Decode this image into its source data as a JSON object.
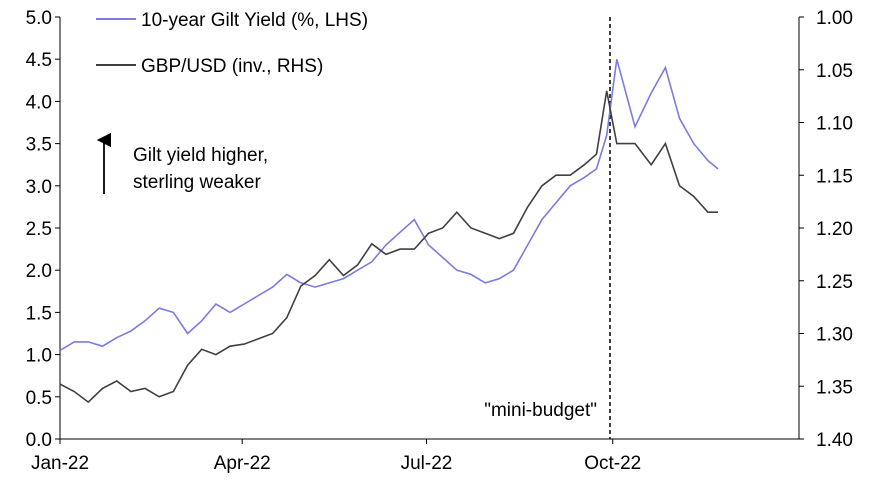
{
  "chart_data": {
    "type": "line",
    "title": "",
    "xlabel": "",
    "ylabel_left": "",
    "ylabel_right": "",
    "x_ticks": [
      "Jan-22",
      "Apr-22",
      "Jul-22",
      "Oct-22"
    ],
    "y_left": {
      "min": 0.0,
      "max": 5.0,
      "ticks": [
        "0.0",
        "0.5",
        "1.0",
        "1.5",
        "2.0",
        "2.5",
        "3.0",
        "3.5",
        "4.0",
        "4.5",
        "5.0"
      ]
    },
    "y_right": {
      "min": 1.0,
      "max": 1.4,
      "inverted": true,
      "ticks": [
        "1.00",
        "1.05",
        "1.10",
        "1.15",
        "1.20",
        "1.25",
        "1.30",
        "1.35",
        "1.40"
      ]
    },
    "legend": {
      "position": "top-left"
    },
    "series": [
      {
        "name": "10-year Gilt Yield (%, LHS)",
        "axis": "left",
        "color": "#7b7be0",
        "x": [
          "2022-01-01",
          "2022-01-08",
          "2022-01-15",
          "2022-01-22",
          "2022-01-29",
          "2022-02-05",
          "2022-02-12",
          "2022-02-19",
          "2022-02-26",
          "2022-03-05",
          "2022-03-12",
          "2022-03-19",
          "2022-03-26",
          "2022-04-02",
          "2022-04-09",
          "2022-04-16",
          "2022-04-23",
          "2022-04-30",
          "2022-05-07",
          "2022-05-14",
          "2022-05-21",
          "2022-05-28",
          "2022-06-04",
          "2022-06-11",
          "2022-06-18",
          "2022-06-25",
          "2022-07-02",
          "2022-07-09",
          "2022-07-16",
          "2022-07-23",
          "2022-07-30",
          "2022-08-06",
          "2022-08-13",
          "2022-08-20",
          "2022-08-27",
          "2022-09-03",
          "2022-09-10",
          "2022-09-17",
          "2022-09-23",
          "2022-09-28",
          "2022-10-03",
          "2022-10-12",
          "2022-10-20",
          "2022-10-27",
          "2022-11-03",
          "2022-11-10",
          "2022-11-17",
          "2022-11-22"
        ],
        "values": [
          1.05,
          1.15,
          1.15,
          1.1,
          1.2,
          1.28,
          1.4,
          1.55,
          1.5,
          1.25,
          1.4,
          1.6,
          1.5,
          1.6,
          1.7,
          1.8,
          1.95,
          1.85,
          1.8,
          1.85,
          1.9,
          2.0,
          2.1,
          2.3,
          2.45,
          2.6,
          2.3,
          2.15,
          2.0,
          1.95,
          1.85,
          1.9,
          2.0,
          2.3,
          2.6,
          2.8,
          3.0,
          3.1,
          3.2,
          3.6,
          4.5,
          3.7,
          4.1,
          4.4,
          3.8,
          3.5,
          3.3,
          3.2
        ]
      },
      {
        "name": "GBP/USD (inv., RHS)",
        "axis": "right",
        "color": "#404040",
        "x": [
          "2022-01-01",
          "2022-01-08",
          "2022-01-15",
          "2022-01-22",
          "2022-01-29",
          "2022-02-05",
          "2022-02-12",
          "2022-02-19",
          "2022-02-26",
          "2022-03-05",
          "2022-03-12",
          "2022-03-19",
          "2022-03-26",
          "2022-04-02",
          "2022-04-09",
          "2022-04-16",
          "2022-04-23",
          "2022-04-30",
          "2022-05-07",
          "2022-05-14",
          "2022-05-21",
          "2022-05-28",
          "2022-06-04",
          "2022-06-11",
          "2022-06-18",
          "2022-06-25",
          "2022-07-02",
          "2022-07-09",
          "2022-07-16",
          "2022-07-23",
          "2022-07-30",
          "2022-08-06",
          "2022-08-13",
          "2022-08-20",
          "2022-08-27",
          "2022-09-03",
          "2022-09-10",
          "2022-09-17",
          "2022-09-23",
          "2022-09-28",
          "2022-10-03",
          "2022-10-12",
          "2022-10-20",
          "2022-10-27",
          "2022-11-03",
          "2022-11-10",
          "2022-11-17",
          "2022-11-22"
        ],
        "values": [
          1.348,
          1.355,
          1.365,
          1.352,
          1.345,
          1.355,
          1.352,
          1.36,
          1.355,
          1.33,
          1.315,
          1.32,
          1.312,
          1.31,
          1.305,
          1.3,
          1.285,
          1.255,
          1.245,
          1.23,
          1.245,
          1.235,
          1.215,
          1.225,
          1.22,
          1.22,
          1.205,
          1.2,
          1.185,
          1.2,
          1.205,
          1.21,
          1.205,
          1.18,
          1.16,
          1.15,
          1.15,
          1.14,
          1.13,
          1.07,
          1.12,
          1.12,
          1.14,
          1.12,
          1.16,
          1.17,
          1.185,
          1.185
        ]
      }
    ],
    "annotations": [
      {
        "id": "arrow",
        "line1": "Gilt yield higher,",
        "line2": "sterling weaker"
      },
      {
        "id": "vline",
        "text": "\"mini-budget\"",
        "x": "2022-09-23"
      }
    ]
  }
}
